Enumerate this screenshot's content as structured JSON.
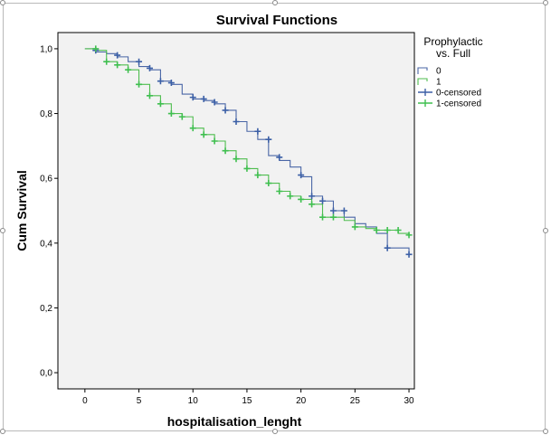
{
  "chart_data": {
    "type": "line",
    "title": "Survival Functions",
    "xlabel": "hospitalisation_lenght",
    "ylabel": "Cum Survival",
    "xlim": [
      -2.5,
      30.5
    ],
    "ylim": [
      -0.05,
      1.05
    ],
    "x_ticks": [
      0,
      5,
      10,
      15,
      20,
      25,
      30
    ],
    "x_tick_labels": [
      "0",
      "5",
      "10",
      "15",
      "20",
      "25",
      "30"
    ],
    "y_ticks": [
      0.0,
      0.2,
      0.4,
      0.6,
      0.8,
      1.0
    ],
    "y_tick_labels": [
      "0,0",
      "0,2",
      "0,4",
      "0,6",
      "0,8",
      "1,0"
    ],
    "grid": false,
    "step": true,
    "legend": {
      "title_lines": [
        "Prophylactic",
        "vs. Full"
      ],
      "placement": "right",
      "entries": [
        "0",
        "1",
        "0-censored",
        "1-censored"
      ]
    },
    "series": [
      {
        "name": "0",
        "color": "#4a66a6",
        "x": [
          0,
          1,
          2,
          3,
          4,
          5,
          6,
          7,
          8,
          9,
          10,
          11,
          12,
          13,
          14,
          15,
          16,
          17,
          18,
          19,
          20,
          21,
          22,
          23,
          24,
          25,
          26,
          27,
          28,
          29,
          30
        ],
        "y": [
          1.0,
          0.99,
          0.985,
          0.975,
          0.96,
          0.945,
          0.935,
          0.9,
          0.89,
          0.86,
          0.845,
          0.84,
          0.83,
          0.81,
          0.775,
          0.745,
          0.72,
          0.67,
          0.655,
          0.635,
          0.605,
          0.545,
          0.53,
          0.5,
          0.48,
          0.46,
          0.45,
          0.43,
          0.385,
          0.385,
          0.365
        ]
      },
      {
        "name": "1",
        "color": "#4fbd4f",
        "x": [
          0,
          1,
          2,
          3,
          4,
          5,
          6,
          7,
          8,
          9,
          10,
          11,
          12,
          13,
          14,
          15,
          16,
          17,
          18,
          19,
          20,
          21,
          22,
          23,
          24,
          25,
          26,
          27,
          28,
          29,
          30
        ],
        "y": [
          1.0,
          0.995,
          0.96,
          0.95,
          0.935,
          0.89,
          0.855,
          0.83,
          0.8,
          0.79,
          0.755,
          0.735,
          0.715,
          0.685,
          0.66,
          0.63,
          0.61,
          0.585,
          0.56,
          0.545,
          0.535,
          0.52,
          0.48,
          0.48,
          0.47,
          0.45,
          0.445,
          0.44,
          0.44,
          0.43,
          0.425
        ]
      }
    ],
    "censored": [
      {
        "name": "0-censored",
        "color": "#3b5fa6",
        "x": [
          1,
          3,
          5,
          6,
          7,
          8,
          10,
          11,
          12,
          13,
          14,
          16,
          17,
          18,
          20,
          21,
          22,
          23,
          24,
          28,
          30
        ],
        "y": [
          0.995,
          0.98,
          0.96,
          0.94,
          0.9,
          0.895,
          0.85,
          0.845,
          0.835,
          0.81,
          0.775,
          0.745,
          0.72,
          0.665,
          0.61,
          0.545,
          0.53,
          0.5,
          0.5,
          0.385,
          0.365
        ]
      },
      {
        "name": "1-censored",
        "color": "#3fbf4f",
        "x": [
          1,
          2,
          3,
          4,
          5,
          6,
          7,
          8,
          9,
          10,
          11,
          12,
          13,
          14,
          15,
          16,
          17,
          18,
          19,
          20,
          21,
          22,
          23,
          25,
          27,
          28,
          29,
          30
        ],
        "y": [
          1.0,
          0.96,
          0.95,
          0.935,
          0.89,
          0.855,
          0.83,
          0.8,
          0.79,
          0.755,
          0.735,
          0.715,
          0.685,
          0.66,
          0.63,
          0.61,
          0.585,
          0.56,
          0.545,
          0.535,
          0.52,
          0.48,
          0.48,
          0.45,
          0.44,
          0.44,
          0.44,
          0.425
        ]
      }
    ]
  }
}
